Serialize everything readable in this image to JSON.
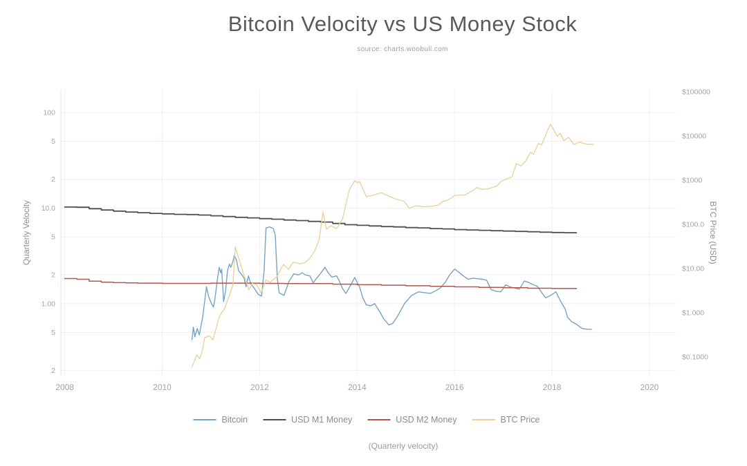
{
  "title": "Bitcoin Velocity vs US Money Stock",
  "subtitle": "source: charts.woobull.com",
  "caption": "(Quarterly velocity)",
  "colors": {
    "bitcoin": "#74a3c6",
    "usd_m1": "#4d4f52",
    "usd_m2": "#b2554e",
    "btc_price": "#e7d096",
    "grid": "#f2eeee",
    "axis_line": "#e3e3e3",
    "tick_text": "#a3a3a3"
  },
  "chart_data": {
    "type": "line",
    "title": "Bitcoin Velocity vs US Money Stock",
    "subtitle": "source: charts.woobull.com",
    "grid": true,
    "legend_position": "bottom",
    "x_axis": {
      "label": "",
      "range": [
        2007.92,
        2020.54
      ],
      "ticks": [
        [
          2008,
          "2008"
        ],
        [
          2010,
          "2010"
        ],
        [
          2012,
          "2012"
        ],
        [
          2014,
          "2014"
        ],
        [
          2016,
          "2016"
        ],
        [
          2018,
          "2018"
        ],
        [
          2020,
          "2020"
        ]
      ]
    },
    "left_axis": {
      "label": "Quarterly Velocity",
      "scale": "log",
      "range": [
        0.174,
        173
      ],
      "ticks": [
        [
          100,
          "100"
        ],
        [
          50,
          "5"
        ],
        [
          20,
          "2"
        ],
        [
          10,
          "10.0"
        ],
        [
          5,
          "5"
        ],
        [
          2,
          "2"
        ],
        [
          1,
          "1.00"
        ],
        [
          0.5,
          "5"
        ],
        [
          0.2,
          "2"
        ]
      ]
    },
    "right_axis": {
      "label": "BTC Price (USD)",
      "scale": "log",
      "range": [
        0.0365,
        111000
      ],
      "ticks": [
        [
          100000,
          "$100000"
        ],
        [
          10000,
          "$10000"
        ],
        [
          1000,
          "$1000"
        ],
        [
          100,
          "$100.0"
        ],
        [
          10,
          "$10.00"
        ],
        [
          1,
          "$1.000"
        ],
        [
          0.1,
          "$0.1000"
        ]
      ]
    },
    "series": [
      {
        "key": "bitcoin",
        "name": "Bitcoin",
        "axis": "left",
        "color": "#74a3c6",
        "step": false,
        "points": [
          [
            2010.61,
            0.42
          ],
          [
            2010.64,
            0.57
          ],
          [
            2010.67,
            0.45
          ],
          [
            2010.72,
            0.55
          ],
          [
            2010.76,
            0.47
          ],
          [
            2010.83,
            0.72
          ],
          [
            2010.87,
            1.05
          ],
          [
            2010.91,
            1.5
          ],
          [
            2010.95,
            1.2
          ],
          [
            2011.01,
            1.0
          ],
          [
            2011.05,
            0.92
          ],
          [
            2011.08,
            1.1
          ],
          [
            2011.13,
            1.75
          ],
          [
            2011.17,
            2.4
          ],
          [
            2011.2,
            2.1
          ],
          [
            2011.22,
            2.3
          ],
          [
            2011.26,
            1.05
          ],
          [
            2011.3,
            1.35
          ],
          [
            2011.34,
            2.2
          ],
          [
            2011.38,
            2.6
          ],
          [
            2011.41,
            2.4
          ],
          [
            2011.45,
            2.75
          ],
          [
            2011.48,
            3.2
          ],
          [
            2011.52,
            2.9
          ],
          [
            2011.57,
            2.2
          ],
          [
            2011.62,
            2.05
          ],
          [
            2011.68,
            1.85
          ],
          [
            2011.72,
            1.5
          ],
          [
            2011.77,
            1.95
          ],
          [
            2011.82,
            1.6
          ],
          [
            2011.89,
            1.45
          ],
          [
            2011.97,
            1.25
          ],
          [
            2012.04,
            1.2
          ],
          [
            2012.09,
            2.2
          ],
          [
            2012.13,
            6.2
          ],
          [
            2012.21,
            6.35
          ],
          [
            2012.28,
            6.1
          ],
          [
            2012.32,
            5.2
          ],
          [
            2012.36,
            1.9
          ],
          [
            2012.4,
            1.3
          ],
          [
            2012.46,
            1.25
          ],
          [
            2012.5,
            1.22
          ],
          [
            2012.6,
            1.7
          ],
          [
            2012.7,
            2.05
          ],
          [
            2012.8,
            2.0
          ],
          [
            2012.87,
            2.1
          ],
          [
            2012.94,
            2.0
          ],
          [
            2013.03,
            1.95
          ],
          [
            2013.1,
            1.65
          ],
          [
            2013.17,
            1.85
          ],
          [
            2013.26,
            2.1
          ],
          [
            2013.34,
            2.4
          ],
          [
            2013.41,
            2.1
          ],
          [
            2013.48,
            1.9
          ],
          [
            2013.58,
            1.95
          ],
          [
            2013.63,
            1.75
          ],
          [
            2013.7,
            1.44
          ],
          [
            2013.77,
            1.28
          ],
          [
            2013.88,
            1.6
          ],
          [
            2013.95,
            1.88
          ],
          [
            2014.05,
            1.5
          ],
          [
            2014.12,
            1.14
          ],
          [
            2014.19,
            0.97
          ],
          [
            2014.28,
            0.95
          ],
          [
            2014.36,
            1.0
          ],
          [
            2014.48,
            0.8
          ],
          [
            2014.55,
            0.69
          ],
          [
            2014.65,
            0.6
          ],
          [
            2014.73,
            0.62
          ],
          [
            2014.83,
            0.74
          ],
          [
            2014.97,
            1.0
          ],
          [
            2015.12,
            1.22
          ],
          [
            2015.26,
            1.33
          ],
          [
            2015.4,
            1.3
          ],
          [
            2015.5,
            1.28
          ],
          [
            2015.6,
            1.35
          ],
          [
            2015.7,
            1.45
          ],
          [
            2015.8,
            1.65
          ],
          [
            2015.9,
            2.0
          ],
          [
            2016.0,
            2.3
          ],
          [
            2016.08,
            2.15
          ],
          [
            2016.18,
            1.95
          ],
          [
            2016.28,
            1.8
          ],
          [
            2016.38,
            1.85
          ],
          [
            2016.48,
            1.82
          ],
          [
            2016.58,
            1.8
          ],
          [
            2016.66,
            1.75
          ],
          [
            2016.75,
            1.4
          ],
          [
            2016.85,
            1.35
          ],
          [
            2016.95,
            1.33
          ],
          [
            2017.05,
            1.57
          ],
          [
            2017.14,
            1.5
          ],
          [
            2017.24,
            1.45
          ],
          [
            2017.33,
            1.42
          ],
          [
            2017.43,
            1.72
          ],
          [
            2017.52,
            1.67
          ],
          [
            2017.61,
            1.58
          ],
          [
            2017.7,
            1.52
          ],
          [
            2017.77,
            1.35
          ],
          [
            2017.87,
            1.15
          ],
          [
            2017.97,
            1.22
          ],
          [
            2018.08,
            1.33
          ],
          [
            2018.18,
            1.05
          ],
          [
            2018.27,
            0.88
          ],
          [
            2018.32,
            0.72
          ],
          [
            2018.4,
            0.65
          ],
          [
            2018.5,
            0.61
          ],
          [
            2018.62,
            0.55
          ],
          [
            2018.72,
            0.54
          ],
          [
            2018.81,
            0.54
          ]
        ]
      },
      {
        "key": "usd-m1",
        "name": "USD M1 Money",
        "axis": "left",
        "color": "#4d4f52",
        "step": true,
        "points": [
          [
            2008.0,
            10.25
          ],
          [
            2008.25,
            10.2
          ],
          [
            2008.5,
            9.85
          ],
          [
            2008.75,
            9.55
          ],
          [
            2009.0,
            9.3
          ],
          [
            2009.25,
            9.1
          ],
          [
            2009.5,
            8.95
          ],
          [
            2009.75,
            8.8
          ],
          [
            2010.0,
            8.7
          ],
          [
            2010.25,
            8.6
          ],
          [
            2010.5,
            8.55
          ],
          [
            2010.75,
            8.45
          ],
          [
            2011.0,
            8.3
          ],
          [
            2011.25,
            8.15
          ],
          [
            2011.5,
            8.0
          ],
          [
            2011.75,
            7.9
          ],
          [
            2012.0,
            7.75
          ],
          [
            2012.25,
            7.65
          ],
          [
            2012.5,
            7.5
          ],
          [
            2012.75,
            7.4
          ],
          [
            2013.0,
            7.25
          ],
          [
            2013.25,
            7.15
          ],
          [
            2013.5,
            6.9
          ],
          [
            2013.75,
            6.7
          ],
          [
            2014.0,
            6.6
          ],
          [
            2014.25,
            6.5
          ],
          [
            2014.5,
            6.4
          ],
          [
            2014.75,
            6.35
          ],
          [
            2015.0,
            6.25
          ],
          [
            2015.25,
            6.2
          ],
          [
            2015.5,
            6.1
          ],
          [
            2015.75,
            6.05
          ],
          [
            2016.0,
            5.95
          ],
          [
            2016.25,
            5.9
          ],
          [
            2016.5,
            5.85
          ],
          [
            2016.75,
            5.8
          ],
          [
            2017.0,
            5.75
          ],
          [
            2017.25,
            5.7
          ],
          [
            2017.5,
            5.65
          ],
          [
            2017.75,
            5.6
          ],
          [
            2018.0,
            5.55
          ],
          [
            2018.25,
            5.52
          ],
          [
            2018.5,
            5.5
          ]
        ]
      },
      {
        "key": "usd-m2",
        "name": "USD M2 Money",
        "axis": "left",
        "color": "#b2554e",
        "step": true,
        "points": [
          [
            2008.0,
            1.83
          ],
          [
            2008.25,
            1.8
          ],
          [
            2008.5,
            1.72
          ],
          [
            2008.75,
            1.68
          ],
          [
            2009.0,
            1.66
          ],
          [
            2009.25,
            1.65
          ],
          [
            2009.5,
            1.64
          ],
          [
            2010.0,
            1.63
          ],
          [
            2010.5,
            1.63
          ],
          [
            2011.0,
            1.64
          ],
          [
            2011.5,
            1.64
          ],
          [
            2012.0,
            1.63
          ],
          [
            2012.5,
            1.62
          ],
          [
            2013.0,
            1.62
          ],
          [
            2013.5,
            1.6
          ],
          [
            2014.0,
            1.58
          ],
          [
            2014.5,
            1.56
          ],
          [
            2015.0,
            1.54
          ],
          [
            2015.5,
            1.52
          ],
          [
            2016.0,
            1.5
          ],
          [
            2016.5,
            1.48
          ],
          [
            2017.0,
            1.47
          ],
          [
            2017.5,
            1.45
          ],
          [
            2018.0,
            1.44
          ],
          [
            2018.5,
            1.43
          ]
        ]
      },
      {
        "key": "btc-price",
        "name": "BTC Price",
        "axis": "right",
        "color": "#e7d096",
        "step": false,
        "points": [
          [
            2010.61,
            0.06
          ],
          [
            2010.66,
            0.08
          ],
          [
            2010.71,
            0.11
          ],
          [
            2010.77,
            0.09
          ],
          [
            2010.83,
            0.15
          ],
          [
            2010.87,
            0.27
          ],
          [
            2010.97,
            0.3
          ],
          [
            2011.04,
            0.24
          ],
          [
            2011.13,
            0.55
          ],
          [
            2011.18,
            0.86
          ],
          [
            2011.28,
            1.25
          ],
          [
            2011.38,
            2.5
          ],
          [
            2011.45,
            4.2
          ],
          [
            2011.5,
            31
          ],
          [
            2011.57,
            17
          ],
          [
            2011.64,
            9.5
          ],
          [
            2011.78,
            3.3
          ],
          [
            2011.85,
            4.6
          ],
          [
            2011.94,
            4.3
          ],
          [
            2012.03,
            2.8
          ],
          [
            2012.13,
            5.5
          ],
          [
            2012.22,
            4.9
          ],
          [
            2012.35,
            6.5
          ],
          [
            2012.49,
            12.4
          ],
          [
            2012.59,
            9.6
          ],
          [
            2012.69,
            14
          ],
          [
            2012.82,
            12.8
          ],
          [
            2012.92,
            13.5
          ],
          [
            2013.03,
            17
          ],
          [
            2013.13,
            25
          ],
          [
            2013.22,
            45
          ],
          [
            2013.3,
            190
          ],
          [
            2013.37,
            78
          ],
          [
            2013.46,
            93
          ],
          [
            2013.58,
            80
          ],
          [
            2013.7,
            133
          ],
          [
            2013.84,
            600
          ],
          [
            2013.95,
            970
          ],
          [
            2014.01,
            880
          ],
          [
            2014.05,
            930
          ],
          [
            2014.19,
            420
          ],
          [
            2014.33,
            455
          ],
          [
            2014.5,
            520
          ],
          [
            2014.66,
            430
          ],
          [
            2014.79,
            375
          ],
          [
            2014.97,
            330
          ],
          [
            2015.07,
            230
          ],
          [
            2015.22,
            265
          ],
          [
            2015.36,
            250
          ],
          [
            2015.54,
            258
          ],
          [
            2015.66,
            270
          ],
          [
            2015.76,
            330
          ],
          [
            2015.85,
            350
          ],
          [
            2015.93,
            390
          ],
          [
            2016.01,
            453
          ],
          [
            2016.21,
            460
          ],
          [
            2016.37,
            580
          ],
          [
            2016.46,
            680
          ],
          [
            2016.56,
            620
          ],
          [
            2016.7,
            640
          ],
          [
            2016.86,
            730
          ],
          [
            2016.97,
            960
          ],
          [
            2017.08,
            1070
          ],
          [
            2017.18,
            1200
          ],
          [
            2017.27,
            2370
          ],
          [
            2017.36,
            2100
          ],
          [
            2017.46,
            2700
          ],
          [
            2017.56,
            4300
          ],
          [
            2017.62,
            3800
          ],
          [
            2017.72,
            6800
          ],
          [
            2017.79,
            6300
          ],
          [
            2017.89,
            12000
          ],
          [
            2017.97,
            18500
          ],
          [
            2018.04,
            13500
          ],
          [
            2018.11,
            9800
          ],
          [
            2018.17,
            11500
          ],
          [
            2018.24,
            7800
          ],
          [
            2018.34,
            9300
          ],
          [
            2018.45,
            6400
          ],
          [
            2018.56,
            7300
          ],
          [
            2018.64,
            6800
          ],
          [
            2018.71,
            6500
          ],
          [
            2018.85,
            6400
          ]
        ]
      }
    ]
  }
}
